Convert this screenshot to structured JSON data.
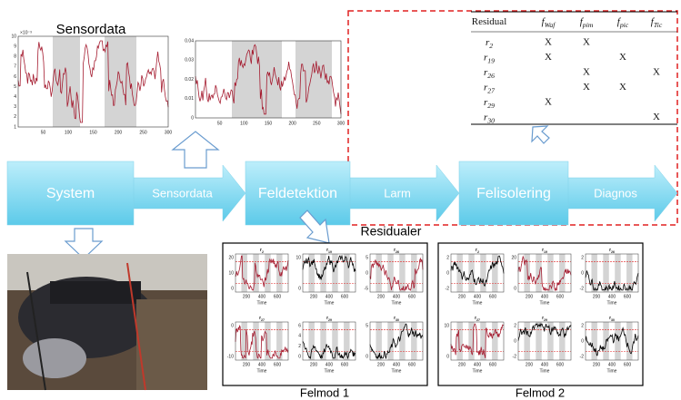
{
  "sensor_plots": {
    "title": "Sensordata",
    "plot1": {
      "exponent": "×10⁻³",
      "yticks": [
        "1",
        "2",
        "3",
        "4",
        "5",
        "6",
        "7",
        "8",
        "9",
        "10"
      ],
      "xticks": [
        "50",
        "100",
        "150",
        "200",
        "250",
        "300"
      ]
    },
    "plot2": {
      "yticks": [
        "0",
        "0.01",
        "0.02",
        "0.03",
        "0.04"
      ],
      "xticks": [
        "50",
        "100",
        "150",
        "200",
        "250",
        "300"
      ]
    }
  },
  "flow": {
    "nodes": [
      "System",
      "Feldetektion",
      "Felisolering"
    ],
    "arrows": [
      "Sensordata",
      "Larm",
      "Diagnos"
    ]
  },
  "table": {
    "header": [
      {
        "main": "Residual"
      },
      {
        "main": "f",
        "sub": "Waf"
      },
      {
        "main": "f",
        "sub": "pim"
      },
      {
        "main": "f",
        "sub": "pic"
      },
      {
        "main": "f",
        "sub": "Tic"
      }
    ],
    "rows": [
      {
        "main": "r",
        "sub": "2",
        "marks": [
          "X",
          "X",
          null,
          null
        ]
      },
      {
        "main": "r",
        "sub": "19",
        "marks": [
          "X",
          null,
          "X",
          null
        ]
      },
      {
        "main": "r",
        "sub": "26",
        "marks": [
          null,
          "X",
          null,
          "X"
        ]
      },
      {
        "main": "r",
        "sub": "27",
        "marks": [
          null,
          "X",
          "X",
          null
        ]
      },
      {
        "main": "r",
        "sub": "29",
        "marks": [
          "X",
          null,
          null,
          null
        ]
      },
      {
        "main": "r",
        "sub": "30",
        "marks": [
          null,
          null,
          null,
          "X"
        ]
      }
    ]
  },
  "residuals": {
    "title": "Residualer",
    "time_label": "Time",
    "xticks": [
      "200",
      "400",
      "600"
    ],
    "modes": [
      {
        "name": "Felmod 1",
        "plots": [
          {
            "main": "r",
            "sub": "2",
            "yticks": [
              "20",
              "10",
              "0"
            ]
          },
          {
            "main": "r",
            "sub": "19",
            "yticks": [
              "10",
              "0"
            ]
          },
          {
            "main": "r",
            "sub": "26",
            "yticks": [
              "5",
              "0",
              "-5"
            ]
          },
          {
            "main": "r",
            "sub": "27",
            "yticks": [
              "0",
              "-10"
            ]
          },
          {
            "main": "r",
            "sub": "29",
            "yticks": [
              "6",
              "4",
              "2",
              "0"
            ]
          },
          {
            "main": "r",
            "sub": "30",
            "yticks": [
              "5",
              "0"
            ]
          }
        ]
      },
      {
        "name": "Felmod 2",
        "plots": [
          {
            "main": "r",
            "sub": "2",
            "yticks": [
              "2",
              "0",
              "-2"
            ]
          },
          {
            "main": "r",
            "sub": "19",
            "yticks": [
              "20",
              "0"
            ]
          },
          {
            "main": "r",
            "sub": "26",
            "yticks": [
              "2",
              "0",
              "-2"
            ]
          },
          {
            "main": "r",
            "sub": "27",
            "yticks": [
              "10",
              "0"
            ]
          },
          {
            "main": "r",
            "sub": "29",
            "yticks": [
              "2",
              "0",
              "-2"
            ]
          },
          {
            "main": "r",
            "sub": "30",
            "yticks": [
              "2",
              "0",
              "-2"
            ]
          }
        ]
      }
    ]
  }
}
